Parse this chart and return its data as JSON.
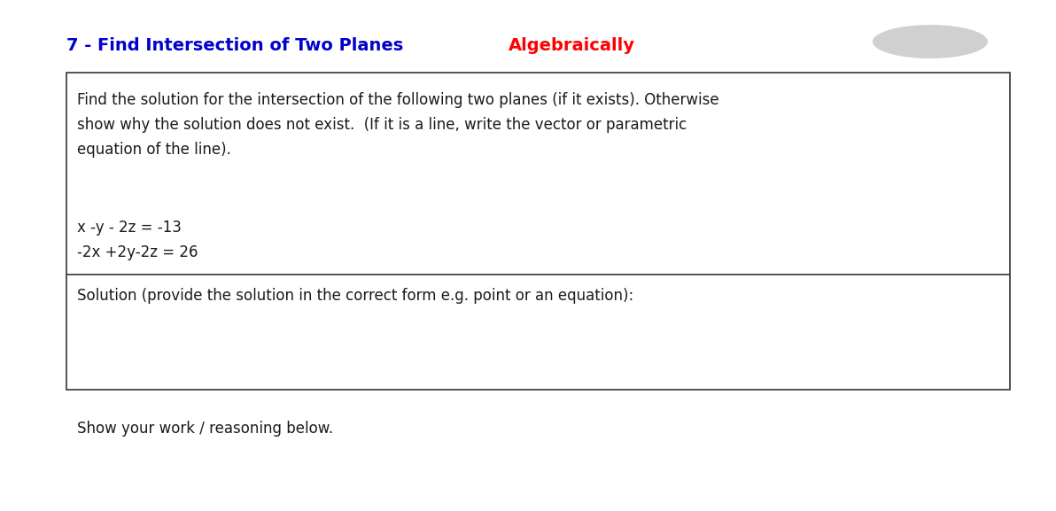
{
  "title_part1": "7 - Find Intersection of Two Planes ",
  "title_part2": "Algebraically",
  "title_color1": "#0000cc",
  "title_color2": "#ff0000",
  "title_fontsize": 14,
  "description_lines": [
    "Find the solution for the intersection of the following two planes (if it exists). Otherwise",
    "show why the solution does not exist.  (If it is a line, write the vector or parametric",
    "equation of the line)."
  ],
  "equation1": "x -y - 2z = -13",
  "equation2": "-2x +2y-2z = 26",
  "solution_label": "Solution (provide the solution in the correct form e.g. point or an equation):",
  "footer": "Show your work / reasoning below.",
  "text_color": "#1a1a1a",
  "box_edge_color": "#444444",
  "background_color": "#ffffff",
  "desc_fontsize": 12,
  "eq_fontsize": 12,
  "sol_fontsize": 12,
  "footer_fontsize": 12,
  "ellipse_color": "#aaaaaa",
  "ellipse_alpha": 0.55
}
